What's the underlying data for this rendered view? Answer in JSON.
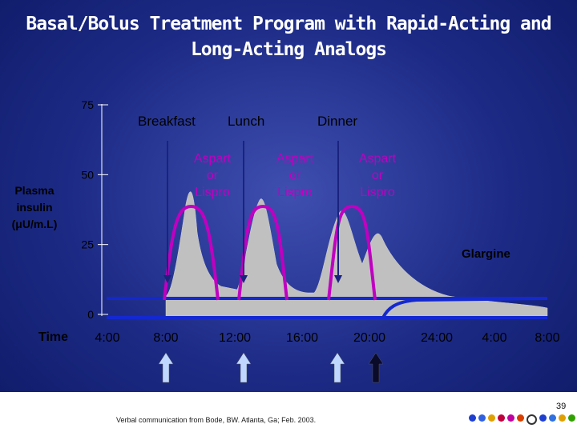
{
  "title": {
    "line1": "Basal/Bolus Treatment Program with  Rapid-Acting and",
    "line2": "Long-Acting Analogs"
  },
  "chart_data": {
    "type": "area",
    "ylabel": [
      "Plasma",
      "insulin",
      "(μU/m.L)"
    ],
    "xlabel": "Time",
    "ylim": [
      0,
      75
    ],
    "yticks": [
      0,
      25,
      50,
      75
    ],
    "xticks": [
      "4:00",
      "8:00",
      "12:00",
      "16:00",
      "20:00",
      "24:00",
      "4:00",
      "8:00"
    ],
    "meals": [
      "Breakfast",
      "Lunch",
      "Dinner"
    ],
    "bolus_labels": [
      [
        "Aspart",
        "or",
        "Lispro"
      ],
      [
        "Aspart",
        "or",
        "Lispro"
      ],
      [
        "Aspart",
        "or",
        "Lispro"
      ]
    ],
    "basal_label": "Glargine",
    "series": [
      {
        "name": "Aspart or Lispro",
        "color": "#c000c0"
      },
      {
        "name": "Glargine",
        "color": "#1020c8"
      }
    ],
    "colors": {
      "physiologic_area": "#c0c0c0",
      "injection_arrow_light": "#c0d8ff",
      "injection_arrow_dark": "#0a0a2a"
    }
  },
  "footer": {
    "credit": "Verbal communication from Bode, BW. Atlanta, Ga; Feb. 2003.",
    "slide_number": "39"
  },
  "dot_colors": [
    "#1e3fd0",
    "#3060e0",
    "#e0a000",
    "#c0003c",
    "#c000a0",
    "#d84000",
    "#ffffff",
    "#1e3fd0",
    "#3070e0",
    "#e0a000",
    "#30a000"
  ]
}
